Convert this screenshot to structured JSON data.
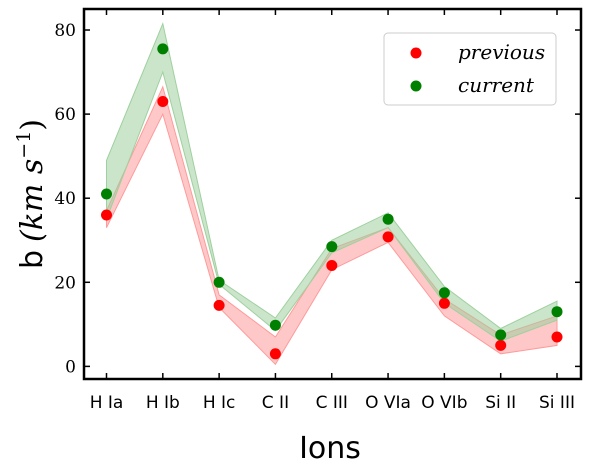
{
  "chart_data": {
    "type": "scatter",
    "categories": [
      "H Ia",
      "H Ib",
      "H Ic",
      "C II",
      "C III",
      "O VIa",
      "O VIb",
      "Si II",
      "Si III"
    ],
    "series": [
      {
        "name": "previous",
        "color": "#ff0000",
        "band_color": "#ff9a9a",
        "values": [
          36,
          63,
          14.5,
          3,
          24,
          30.8,
          15,
          5,
          7
        ],
        "lower": [
          33,
          60,
          14,
          0.5,
          23,
          29.5,
          12,
          3,
          5
        ],
        "upper": [
          37,
          66.5,
          17,
          7,
          28,
          33,
          16,
          7.5,
          12
        ]
      },
      {
        "name": "current",
        "color": "#008000",
        "band_color": "#9fd09f",
        "values": [
          41,
          75.5,
          20,
          9.8,
          28.5,
          35,
          17.5,
          7.5,
          13
        ],
        "lower": [
          35,
          70,
          19.5,
          8.5,
          27,
          33,
          15,
          6,
          11
        ],
        "upper": [
          49,
          81.5,
          20.5,
          11.5,
          30,
          36.5,
          19,
          9,
          15.5
        ]
      }
    ],
    "xlabel": "Ions",
    "ylabel_prefix": "b",
    "ylabel_unit": "(km s",
    "ylabel_exp": "−1",
    "ylabel_close": ")",
    "yticks": [
      0,
      20,
      40,
      60,
      80
    ],
    "ylim": [
      -3,
      85
    ],
    "grid": false,
    "legend": "top-right"
  }
}
